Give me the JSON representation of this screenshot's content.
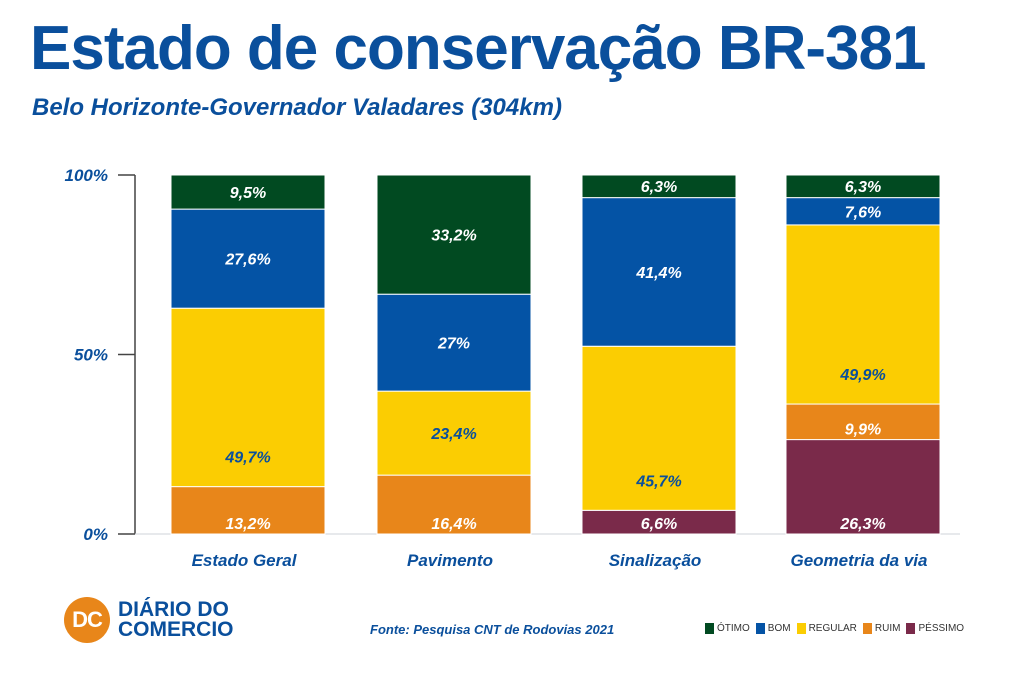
{
  "title": "Estado de conservação BR-381",
  "subtitle": "Belo Horizonte-Governador Valadares (304km)",
  "source": "Fonte: Pesquisa CNT de Rodovias 2021",
  "brand": {
    "initials": "DC",
    "line1": "DIÁRIO DO",
    "line2": "COMERCIO"
  },
  "colors": {
    "title": "#0a4f9c",
    "otimo": "#014a21",
    "bom": "#0453a5",
    "regular": "#fbcd02",
    "ruim": "#e8861a",
    "pessimo": "#7a2a4a",
    "brand_orange": "#e8861a"
  },
  "chart_data": {
    "type": "bar",
    "stacked": true,
    "categories": [
      "Estado Geral",
      "Pavimento",
      "Sinalização",
      "Geometria da via"
    ],
    "ylim": [
      0,
      100
    ],
    "yticks": [
      0,
      50,
      100
    ],
    "ytick_labels": [
      "0%",
      "50%",
      "100%"
    ],
    "legend_placement": "bottom-right",
    "series": [
      {
        "name": "PÉSSIMO",
        "key": "pessimo",
        "values": [
          0,
          0,
          6.6,
          26.3
        ],
        "labels": [
          "",
          "",
          "6,6%",
          "26,3%"
        ],
        "label_color": "#ffffff"
      },
      {
        "name": "RUIM",
        "key": "ruim",
        "values": [
          13.2,
          16.4,
          0,
          9.9
        ],
        "labels": [
          "13,2%",
          "16,4%",
          "",
          "9,9%"
        ],
        "label_color": "#ffffff"
      },
      {
        "name": "REGULAR",
        "key": "regular",
        "values": [
          49.7,
          23.4,
          45.7,
          49.9
        ],
        "labels": [
          "49,7%",
          "23,4%",
          "45,7%",
          "49,9%"
        ],
        "label_color": "#0a4f9c"
      },
      {
        "name": "BOM",
        "key": "bom",
        "values": [
          27.6,
          27,
          41.4,
          7.6
        ],
        "labels": [
          "27,6%",
          "27%",
          "41,4%",
          "7,6%"
        ],
        "label_color": "#ffffff"
      },
      {
        "name": "ÓTIMO",
        "key": "otimo",
        "values": [
          9.5,
          33.2,
          6.3,
          6.3
        ],
        "labels": [
          "9,5%",
          "33,2%",
          "6,3%",
          "6,3%"
        ],
        "label_color": "#ffffff"
      }
    ],
    "legend": [
      "ÓTIMO",
      "BOM",
      "REGULAR",
      "RUIM",
      "PÉSSIMO"
    ]
  }
}
